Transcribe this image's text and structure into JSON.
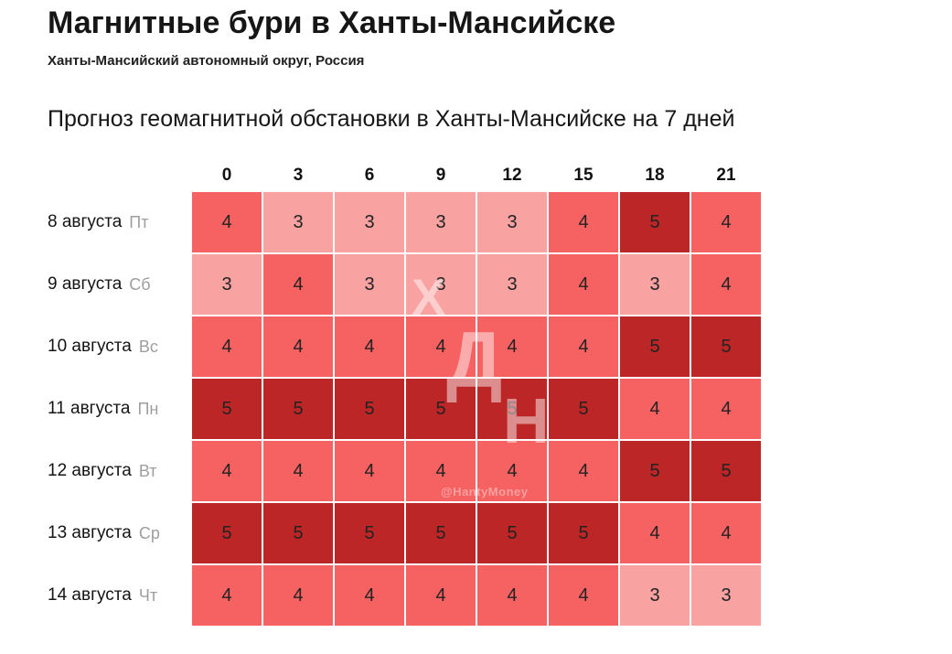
{
  "page": {
    "title": "Магнитные бури в Ханты-Мансийске",
    "subtitle": "Ханты-Мансийский автономный округ, Россия",
    "section_title": "Прогноз геомагнитной обстановки в Ханты-Мансийске на 7 дней"
  },
  "watermark": {
    "letters": [
      "Х",
      "Д",
      "Н"
    ],
    "handle": "@HantyMoney"
  },
  "chart_data": {
    "type": "heatmap",
    "title": "Прогноз геомагнитной обстановки в Ханты-Мансийске на 7 дней",
    "xlabel": "",
    "ylabel": "",
    "x_tick_labels": [
      "0",
      "3",
      "6",
      "9",
      "12",
      "15",
      "18",
      "21"
    ],
    "value_range": [
      3,
      5
    ],
    "grid": "white 2px gutters between cells",
    "legend": "none",
    "palette": {
      "3": "#f9a2a2",
      "4": "#f66161",
      "5": "#bd2626"
    },
    "rows": [
      {
        "date": "8 августа",
        "weekday": "Пт",
        "values": [
          4,
          3,
          3,
          3,
          3,
          4,
          5,
          4
        ]
      },
      {
        "date": "9 августа",
        "weekday": "Сб",
        "values": [
          3,
          4,
          3,
          3,
          3,
          4,
          3,
          4
        ]
      },
      {
        "date": "10 августа",
        "weekday": "Вс",
        "values": [
          4,
          4,
          4,
          4,
          4,
          4,
          5,
          5
        ]
      },
      {
        "date": "11 августа",
        "weekday": "Пн",
        "values": [
          5,
          5,
          5,
          5,
          5,
          5,
          4,
          4
        ]
      },
      {
        "date": "12 августа",
        "weekday": "Вт",
        "values": [
          4,
          4,
          4,
          4,
          4,
          4,
          5,
          5
        ]
      },
      {
        "date": "13 августа",
        "weekday": "Ср",
        "values": [
          5,
          5,
          5,
          5,
          5,
          5,
          4,
          4
        ]
      },
      {
        "date": "14 августа",
        "weekday": "Чт",
        "values": [
          4,
          4,
          4,
          4,
          4,
          4,
          3,
          3
        ]
      }
    ]
  }
}
